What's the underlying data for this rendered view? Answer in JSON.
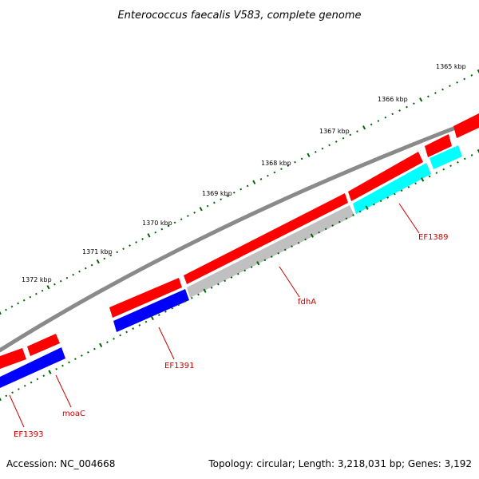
{
  "title": "Enterococcus faecalis V583, complete genome",
  "accession": "Accession: NC_004668",
  "summary": "Topology: circular; Length: 3,218,031 bp; Genes: 3,192",
  "colors": {
    "backbone": "#808080",
    "forward_feature": "#ff0000",
    "reverse_blue": "#0000ff",
    "reverse_cyan": "#00ffff",
    "reverse_gray": "#bfbfbf",
    "tick": "#006400",
    "label": "#cc0000"
  },
  "ticks": [
    {
      "label": "1365 kbp"
    },
    {
      "label": "1366 kbp"
    },
    {
      "label": "1367 kbp"
    },
    {
      "label": "1368 kbp"
    },
    {
      "label": "1369 kbp"
    },
    {
      "label": "1370 kbp"
    },
    {
      "label": "1371 kbp"
    },
    {
      "label": "1372 kbp"
    }
  ],
  "genes": [
    {
      "name": "EF1389",
      "strand": "reverse",
      "color": "#00ffff"
    },
    {
      "name": "fdhA",
      "strand": "reverse",
      "color": "#bfbfbf"
    },
    {
      "name": "EF1391",
      "strand": "reverse",
      "color": "#0000ff"
    },
    {
      "name": "moaC",
      "strand": "reverse",
      "color": "#0000ff"
    },
    {
      "name": "EF1393",
      "strand": "reverse",
      "color": "#0000ff"
    }
  ]
}
